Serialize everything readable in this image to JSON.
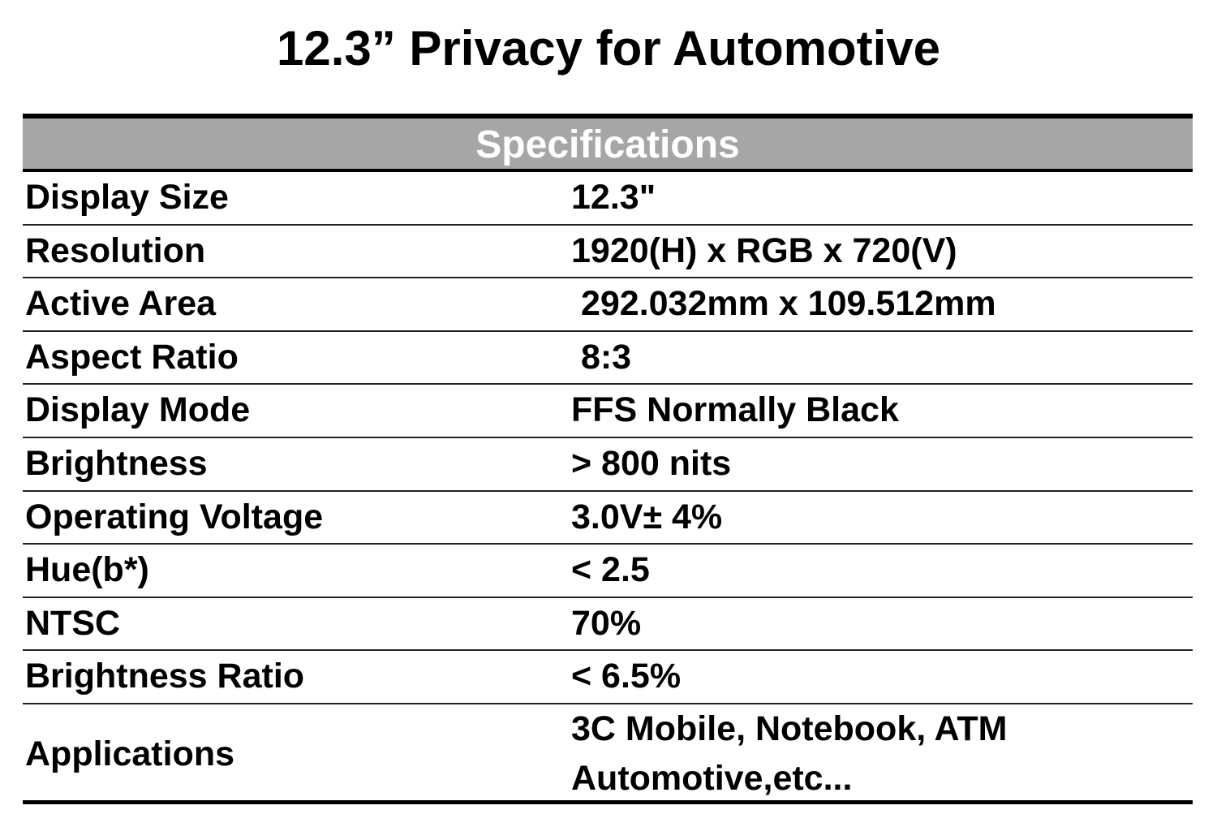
{
  "title": "12.3” Privacy for Automotive",
  "table": {
    "header": "Specifications",
    "rows": [
      {
        "label": "Display Size",
        "value": "12.3\""
      },
      {
        "label": "Resolution",
        "value": "1920(H) x RGB x 720(V)"
      },
      {
        "label": "Active Area",
        "value": " 292.032mm x 109.512mm"
      },
      {
        "label": "Aspect Ratio",
        "value": " 8:3"
      },
      {
        "label": "Display Mode",
        "value": "FFS Normally Black"
      },
      {
        "label": "Brightness",
        "value": "> 800 nits"
      },
      {
        "label": "Operating Voltage",
        "value": "3.0V± 4%"
      },
      {
        "label": "Hue(b*)",
        "value": "< 2.5"
      },
      {
        "label": "NTSC",
        "value": "70%"
      },
      {
        "label": "Brightness Ratio",
        "value": "< 6.5%"
      },
      {
        "label": "Applications",
        "value": "3C Mobile, Notebook, ATM\nAutomotive,etc..."
      }
    ]
  },
  "colors": {
    "header_bg": "#a6a6a6",
    "header_text": "#ffffff"
  }
}
